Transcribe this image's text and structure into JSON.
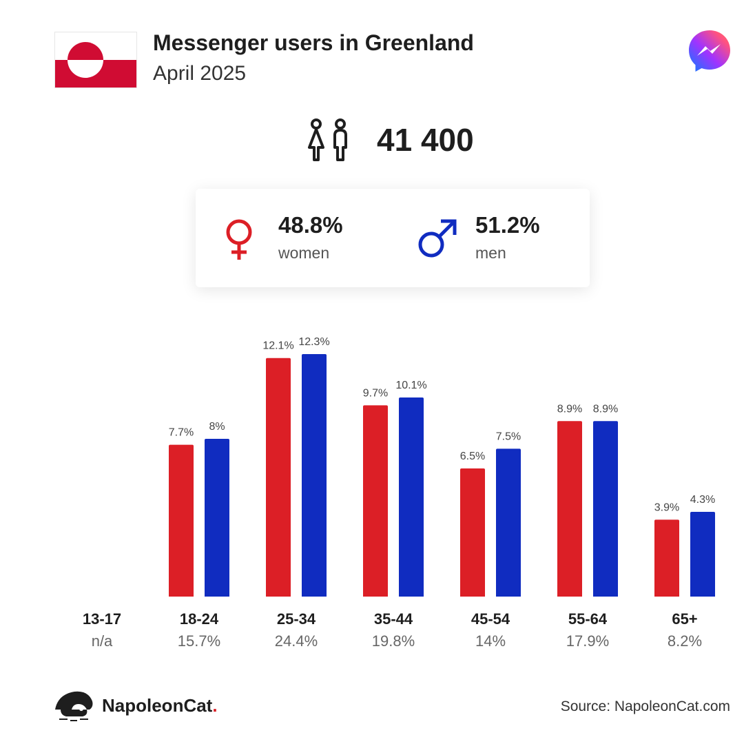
{
  "header": {
    "title": "Messenger users in Greenland",
    "subtitle": "April 2025"
  },
  "total": {
    "value": "41 400"
  },
  "gender": {
    "women": {
      "pct": "48.8%",
      "label": "women"
    },
    "men": {
      "pct": "51.2%",
      "label": "men"
    }
  },
  "colors": {
    "women": "#dc1f26",
    "men": "#102cc0",
    "flag_red": "#d00c33"
  },
  "icons": [
    "greenland-flag-icon",
    "messenger-logo-icon",
    "people-icon",
    "female-symbol-icon",
    "male-symbol-icon",
    "napoleoncat-logo-icon"
  ],
  "chart_data": {
    "type": "bar",
    "categories": [
      "13-17",
      "18-24",
      "25-34",
      "35-44",
      "45-54",
      "55-64",
      "65+"
    ],
    "category_totals": [
      "n/a",
      "15.7%",
      "24.4%",
      "19.8%",
      "14%",
      "17.9%",
      "8.2%"
    ],
    "series": [
      {
        "name": "women",
        "values": [
          null,
          7.7,
          12.1,
          9.7,
          6.5,
          8.9,
          3.9
        ],
        "labels": [
          "",
          "7.7%",
          "12.1%",
          "9.7%",
          "6.5%",
          "8.9%",
          "3.9%"
        ]
      },
      {
        "name": "men",
        "values": [
          null,
          8,
          12.3,
          10.1,
          7.5,
          8.9,
          4.3
        ],
        "labels": [
          "",
          "8%",
          "12.3%",
          "10.1%",
          "7.5%",
          "8.9%",
          "4.3%"
        ]
      }
    ],
    "ylim": [
      0,
      12.3
    ],
    "title": "",
    "xlabel": "",
    "ylabel": ""
  },
  "footer": {
    "brand_name": "NapoleonCat",
    "brand_dot": ".",
    "source": "Source: NapoleonCat.com"
  }
}
